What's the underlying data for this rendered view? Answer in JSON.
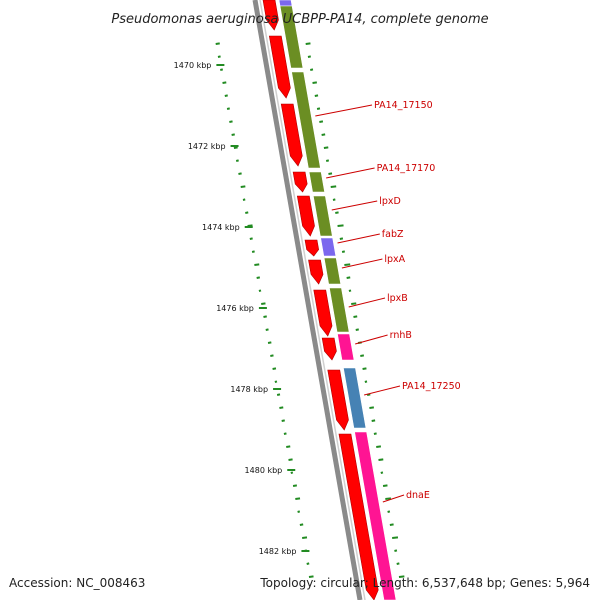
{
  "title": "Pseudomonas aeruginosa UCBPP-PA14, complete genome",
  "ticks": [
    "1470 kbp",
    "1472 kbp",
    "1474 kbp",
    "1476 kbp",
    "1478 kbp",
    "1480 kbp",
    "1482 kbp"
  ],
  "genes": [
    "PA14_17150",
    "PA14_17170",
    "lpxD",
    "fabZ",
    "lpxA",
    "lpxB",
    "rnhB",
    "PA14_17250",
    "dnaE"
  ],
  "footer": {
    "accession": "Accession: NC_008463",
    "summary": "Topology: circular; Length: 6,537,648 bp; Genes: 5,964"
  },
  "colors": {
    "backbone": "#8a8a8a",
    "cds": "#ff0000",
    "cog_green": "#6b8e23",
    "cog_purple": "#7b68ee",
    "cog_magenta": "#ff1493",
    "cog_blue": "#4682b4",
    "gc_skew": "#228b22",
    "label": "#cc0000"
  }
}
